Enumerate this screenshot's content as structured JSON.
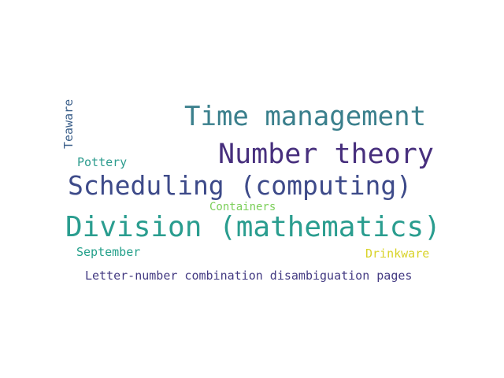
{
  "word_cloud": {
    "words": [
      {
        "id": "time-management",
        "text": "Time management",
        "color": "#3a7f8c"
      },
      {
        "id": "number-theory",
        "text": "Number theory",
        "color": "#472f7d"
      },
      {
        "id": "scheduling",
        "text": "Scheduling (computing)",
        "color": "#3d4a89"
      },
      {
        "id": "division",
        "text": "Division (mathematics)",
        "color": "#2a9d8f"
      },
      {
        "id": "teaware",
        "text": "Teaware",
        "color": "#3b5f8a"
      },
      {
        "id": "pottery",
        "text": "Pottery",
        "color": "#2d9c8e"
      },
      {
        "id": "containers",
        "text": "Containers",
        "color": "#7ccf5a"
      },
      {
        "id": "september",
        "text": "September",
        "color": "#23a08a"
      },
      {
        "id": "drinkware",
        "text": "Drinkware",
        "color": "#d9d32a"
      },
      {
        "id": "letter-number",
        "text": "Letter-number combination disambiguation pages",
        "color": "#433a82"
      }
    ]
  }
}
